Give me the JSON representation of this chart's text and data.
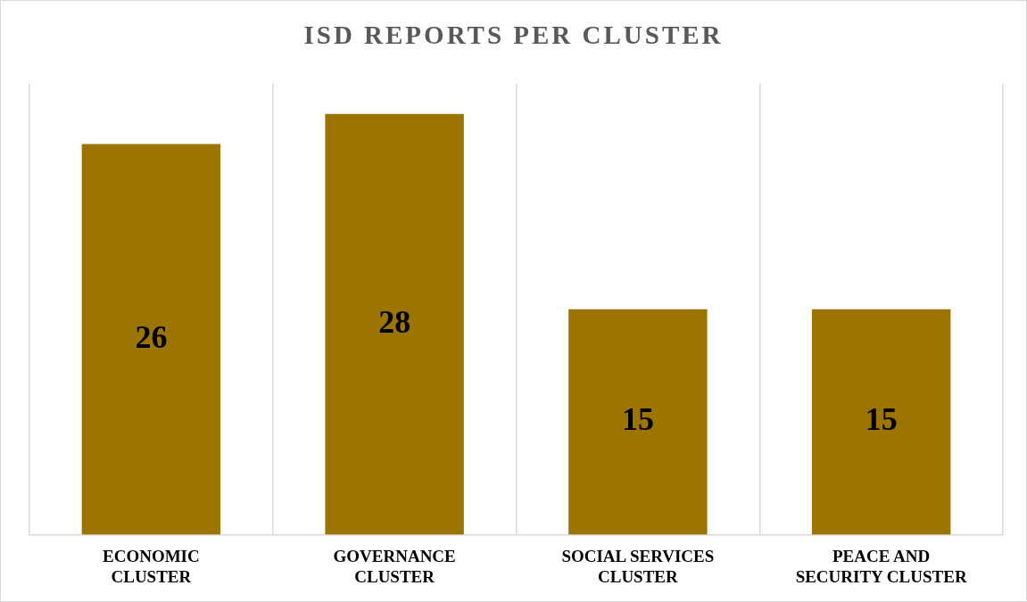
{
  "chart_data": {
    "type": "bar",
    "title": "ISD REPORTS PER CLUSTER",
    "categories": [
      "ECONOMIC CLUSTER",
      "GOVERNANCE CLUSTER",
      "SOCIAL SERVICES CLUSTER",
      "PEACE AND SECURITY CLUSTER"
    ],
    "values": [
      26,
      28,
      15,
      15
    ],
    "color": "#9c7400",
    "ylim": [
      0,
      30
    ],
    "data_labels": true,
    "grid": "x",
    "tick_labels": "x",
    "legend": false
  }
}
